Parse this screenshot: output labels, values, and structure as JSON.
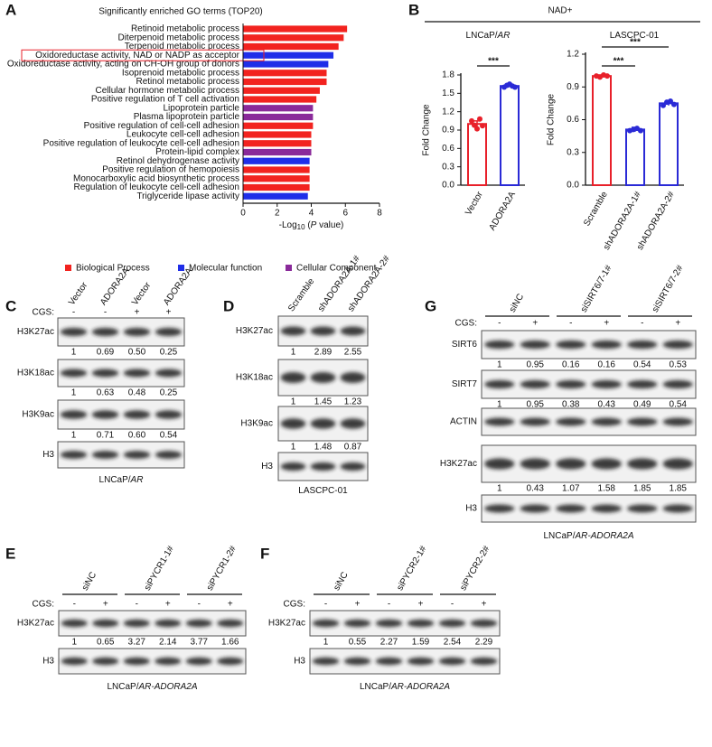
{
  "chart_data": [
    {
      "type": "hbar",
      "panel_label": "A",
      "title": "Significantly enriched GO terms (TOP20)",
      "categories": [
        "Retinoid metabolic process",
        "Diterpenoid metabolic process",
        "Terpenoid metabolic process",
        "Oxidoreductase activity, NAD or NADP as acceptor",
        "Oxidoreductase activity, acting on CH-OH group of donors",
        "Isoprenoid metabolic process",
        "Retinol metabolic process",
        "Cellular hormone metabolic process",
        "Positive regulation of T cell activation",
        "Lipoprotein particle",
        "Plasma lipoprotein particle",
        "Positive regulation of cell-cell adhesion",
        "Leukocyte cell-cell adhesion",
        "Positive regulation of leukocyte cell-cell adhesion",
        "Protein-lipid complex",
        "Retinol dehydrogenase activity",
        "Positive regulation of hemopoiesis",
        "Monocarboxylic acid biosynthetic process",
        "Regulation of leukocyte cell-cell adhesion",
        "Triglyceride lipase activity"
      ],
      "values": [
        6.1,
        5.9,
        5.6,
        5.3,
        5.0,
        4.9,
        4.9,
        4.5,
        4.3,
        4.1,
        4.1,
        4.1,
        4.0,
        4.0,
        4.0,
        3.9,
        3.9,
        3.9,
        3.9,
        3.8
      ],
      "bar_groups": [
        0,
        0,
        0,
        1,
        1,
        0,
        0,
        0,
        0,
        2,
        2,
        0,
        0,
        0,
        2,
        1,
        0,
        0,
        0,
        1
      ],
      "groups": [
        {
          "name": "Biological Process",
          "color": "#f2231f"
        },
        {
          "name": "Molecular function",
          "color": "#1f2ee8"
        },
        {
          "name": "Cellular Component",
          "color": "#8a2a9a"
        }
      ],
      "highlight": 3,
      "xlim": [
        0,
        8
      ],
      "xticks": [
        0,
        2,
        4,
        6,
        8
      ],
      "x_label": [
        "-Log",
        "10",
        " (",
        "P",
        " value)"
      ]
    },
    {
      "type": "dotbar",
      "title": [
        "LNCaP/",
        "AR"
      ],
      "y_label": "Fold Change",
      "categories": [
        "Vector",
        "ADORA2A"
      ],
      "values": [
        1.0,
        1.62
      ],
      "errors": [
        0.05,
        0.02
      ],
      "points": [
        [
          1.05,
          0.98,
          0.92,
          1.08,
          0.97
        ],
        [
          1.6,
          1.63,
          1.65,
          1.62,
          1.6
        ]
      ],
      "colors": [
        "#e8202a",
        "#2a2ad6"
      ],
      "ylim": [
        0,
        1.8
      ],
      "yticks": [
        {
          "value": 0,
          "label": "0.0"
        },
        0.3,
        0.6,
        0.9,
        1.2,
        1.5,
        1.8
      ],
      "significance": [
        {
          "label": "***",
          "between": [
            0,
            1
          ]
        }
      ]
    },
    {
      "type": "dotbar",
      "title": [
        "LASCPC-01"
      ],
      "y_label": "Fold Change",
      "categories": [
        "Scramble",
        "shADORA2A-1#",
        "shADORA2A-2#"
      ],
      "values": [
        1.0,
        0.51,
        0.75
      ],
      "errors": [
        0.01,
        0.02,
        0.02
      ],
      "points": [
        [
          1.0,
          0.99,
          1.01,
          1.0
        ],
        [
          0.5,
          0.51,
          0.52,
          0.5
        ],
        [
          0.73,
          0.76,
          0.77,
          0.74
        ]
      ],
      "colors": [
        "#e8202a",
        "#2a2ad6",
        "#2a2ad6"
      ],
      "ylim": [
        0,
        1.2
      ],
      "yticks": [
        {
          "value": 0,
          "label": "0.0"
        },
        0.3,
        0.6,
        0.9,
        1.2
      ],
      "significance": [
        {
          "label": "***",
          "between": [
            0,
            1
          ]
        },
        {
          "label": "***",
          "between": [
            0,
            2
          ]
        }
      ]
    }
  ],
  "panel_B": {
    "label": "B",
    "title": "NAD+"
  },
  "blots": {
    "C": {
      "letter": "C",
      "columns": [
        "Vector",
        "ADORA2A",
        "Vector",
        "ADORA2A"
      ],
      "cgs_label": "CGS:",
      "cgs": [
        "-",
        "-",
        "+",
        "+"
      ],
      "rows": [
        {
          "label": "H3K27ac",
          "quant": [
            "1",
            "0.69",
            "0.50",
            "0.25"
          ]
        },
        {
          "label": "H3K18ac",
          "quant": [
            "1",
            "0.63",
            "0.48",
            "0.25"
          ]
        },
        {
          "label": "H3K9ac",
          "quant": [
            "1",
            "0.71",
            "0.60",
            "0.54"
          ]
        },
        {
          "label": "H3"
        }
      ],
      "cell_line": [
        "LNCaP/",
        "AR"
      ]
    },
    "D": {
      "letter": "D",
      "columns": [
        "Scramble",
        "shADORA2A-1#",
        "shADORA2A-2#"
      ],
      "rows": [
        {
          "label": "H3K27ac",
          "quant": [
            "1",
            "2.89",
            "2.55"
          ]
        },
        {
          "label": "H3K18ac",
          "quant": [
            "1",
            "1.45",
            "1.23"
          ]
        },
        {
          "label": "H3K9ac",
          "quant": [
            "1",
            "1.48",
            "0.87"
          ]
        },
        {
          "label": "H3"
        }
      ],
      "cell_line": [
        "LASCPC-01"
      ]
    },
    "G": {
      "letter": "G",
      "groups": [
        "siNC",
        "siSIRT6/7-1#",
        "siSIRT6/7-2#"
      ],
      "cgs_label": "CGS:",
      "cgs": [
        "-",
        "+",
        "-",
        "+",
        "-",
        "+"
      ],
      "rows": [
        {
          "label": "SIRT6",
          "quant": [
            "1",
            "0.95",
            "0.16",
            "0.16",
            "0.54",
            "0.53"
          ]
        },
        {
          "label": "SIRT7",
          "quant": [
            "1",
            "0.95",
            "0.38",
            "0.43",
            "0.49",
            "0.54"
          ]
        },
        {
          "label": "ACTIN"
        },
        {
          "label": "H3K27ac",
          "quant": [
            "1",
            "0.43",
            "1.07",
            "1.58",
            "1.85",
            "1.85"
          ]
        },
        {
          "label": "H3"
        }
      ],
      "cell_line": [
        "LNCaP/",
        "AR-ADORA2A"
      ]
    },
    "E": {
      "letter": "E",
      "groups": [
        "siNC",
        "siPYCR1-1#",
        "siPYCR1-2#"
      ],
      "cgs_label": "CGS:",
      "cgs": [
        "-",
        "+",
        "-",
        "+",
        "-",
        "+"
      ],
      "rows": [
        {
          "label": "H3K27ac",
          "quant": [
            "1",
            "0.65",
            "3.27",
            "2.14",
            "3.77",
            "1.66"
          ]
        },
        {
          "label": "H3"
        }
      ],
      "cell_line": [
        "LNCaP/",
        "AR-ADORA2A"
      ]
    },
    "F": {
      "letter": "F",
      "groups": [
        "siNC",
        "siPYCR2-1#",
        "siPYCR2-2#"
      ],
      "cgs_label": "CGS:",
      "cgs": [
        "-",
        "+",
        "-",
        "+",
        "-",
        "+"
      ],
      "rows": [
        {
          "label": "H3K27ac",
          "quant": [
            "1",
            "0.55",
            "2.27",
            "1.59",
            "2.54",
            "2.29"
          ]
        },
        {
          "label": "H3"
        }
      ],
      "cell_line": [
        "LNCaP/",
        "AR-ADORA2A"
      ]
    }
  }
}
